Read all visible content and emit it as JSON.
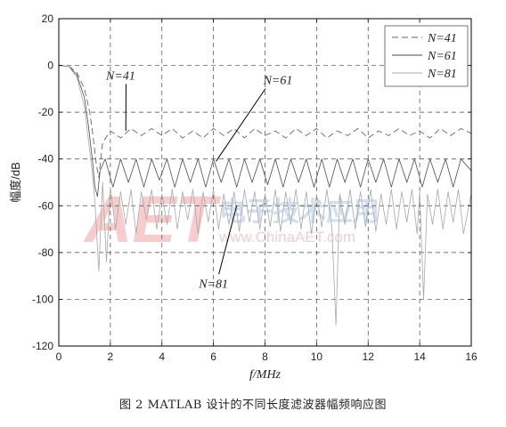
{
  "chart_data": {
    "type": "line",
    "xlabel": "f/MHz",
    "ylabel": "幅度/dB",
    "xlim": [
      0,
      16
    ],
    "ylim": [
      -120,
      20
    ],
    "xticks": [
      0,
      2,
      4,
      6,
      8,
      10,
      12,
      14,
      16
    ],
    "yticks": [
      20,
      0,
      -20,
      -40,
      -60,
      -80,
      -100,
      -120
    ],
    "grid": true,
    "legend_position": "top-right",
    "series": [
      {
        "name": "N=41",
        "style": "dashed",
        "color": "#666666",
        "x": [
          0,
          0.4,
          0.7,
          1.0,
          1.2,
          1.35,
          1.45,
          1.55,
          1.7,
          2.0,
          2.4,
          2.8,
          3.2,
          3.6,
          4.0,
          4.4,
          4.8,
          5.2,
          5.6,
          6.0,
          6.4,
          6.8,
          7.2,
          7.6,
          8.0,
          8.4,
          8.8,
          9.2,
          9.6,
          10.0,
          10.4,
          10.8,
          11.2,
          11.6,
          12.0,
          12.4,
          12.8,
          13.2,
          13.6,
          14.0,
          14.4,
          14.8,
          15.2,
          15.6,
          16.0
        ],
        "y": [
          0,
          -0.5,
          -3,
          -10,
          -20,
          -32,
          -42,
          -48,
          -33,
          -28,
          -31,
          -27,
          -30,
          -27,
          -30,
          -27,
          -31,
          -28,
          -31,
          -27,
          -30,
          -27,
          -31,
          -27,
          -30,
          -28,
          -31,
          -27,
          -30,
          -27,
          -31,
          -28,
          -30,
          -27,
          -31,
          -28,
          -30,
          -27,
          -30,
          -28,
          -31,
          -27,
          -30,
          -27,
          -29
        ]
      },
      {
        "name": "N=61",
        "style": "solid",
        "color": "#4a4a4a",
        "x": [
          0,
          0.4,
          0.7,
          1.0,
          1.15,
          1.3,
          1.4,
          1.5,
          1.6,
          1.8,
          2.1,
          2.4,
          2.7,
          3.0,
          3.3,
          3.6,
          3.9,
          4.2,
          4.5,
          4.8,
          5.1,
          5.4,
          5.7,
          6.0,
          6.3,
          6.6,
          6.9,
          7.2,
          7.5,
          7.8,
          8.1,
          8.4,
          8.7,
          9.0,
          9.3,
          9.6,
          9.9,
          10.2,
          10.5,
          10.8,
          11.1,
          11.4,
          11.7,
          12.0,
          12.3,
          12.6,
          12.9,
          13.2,
          13.5,
          13.8,
          14.1,
          14.4,
          14.7,
          15.0,
          15.3,
          15.6,
          16.0
        ],
        "y": [
          0,
          -0.5,
          -4,
          -14,
          -26,
          -40,
          -52,
          -56,
          -45,
          -40,
          -52,
          -40,
          -50,
          -40,
          -52,
          -40,
          -49,
          -40,
          -52,
          -40,
          -50,
          -40,
          -52,
          -40,
          -50,
          -40,
          -52,
          -40,
          -50,
          -40,
          -51,
          -40,
          -52,
          -40,
          -50,
          -40,
          -52,
          -40,
          -52,
          -40,
          -50,
          -40,
          -52,
          -40,
          -50,
          -40,
          -52,
          -40,
          -50,
          -40,
          -52,
          -40,
          -50,
          -40,
          -52,
          -40,
          -45
        ]
      },
      {
        "name": "N=81",
        "style": "solid",
        "color": "#a8a8a8",
        "x": [
          0,
          0.4,
          0.7,
          1.0,
          1.15,
          1.3,
          1.4,
          1.55,
          1.7,
          1.85,
          2.0,
          2.2,
          2.4,
          2.6,
          2.8,
          3.0,
          3.2,
          3.4,
          3.6,
          3.8,
          4.0,
          4.2,
          4.4,
          4.6,
          4.8,
          5.0,
          5.2,
          5.4,
          5.6,
          5.8,
          6.0,
          6.2,
          6.4,
          6.6,
          6.8,
          7.0,
          7.2,
          7.4,
          7.6,
          7.8,
          8.0,
          8.2,
          8.4,
          8.6,
          8.8,
          9.0,
          9.2,
          9.4,
          9.6,
          9.8,
          10.0,
          10.2,
          10.4,
          10.6,
          10.75,
          10.9,
          11.1,
          11.3,
          11.5,
          11.7,
          11.9,
          12.1,
          12.3,
          12.5,
          12.7,
          12.9,
          13.1,
          13.3,
          13.5,
          13.7,
          13.9,
          14.0,
          14.15,
          14.3,
          14.5,
          14.7,
          14.9,
          15.1,
          15.3,
          15.5,
          15.7,
          16.0
        ],
        "y": [
          0,
          -0.6,
          -5,
          -18,
          -32,
          -46,
          -58,
          -88,
          -50,
          -84,
          -52,
          -70,
          -54,
          -68,
          -53,
          -72,
          -54,
          -66,
          -53,
          -70,
          -55,
          -68,
          -53,
          -70,
          -54,
          -66,
          -53,
          -72,
          -54,
          -67,
          -53,
          -70,
          -55,
          -68,
          -54,
          -71,
          -53,
          -67,
          -54,
          -70,
          -55,
          -69,
          -53,
          -71,
          -54,
          -68,
          -53,
          -70,
          -54,
          -72,
          -55,
          -69,
          -53,
          -70,
          -111,
          -55,
          -68,
          -53,
          -70,
          -54,
          -69,
          -53,
          -71,
          -55,
          -68,
          -53,
          -70,
          -54,
          -67,
          -53,
          -72,
          -54,
          -100,
          -55,
          -68,
          -53,
          -70,
          -54,
          -67,
          -53,
          -72,
          -55
        ]
      }
    ],
    "annotations": [
      {
        "text": "N=41",
        "x": 2.4,
        "y": -6,
        "arrow_to": [
          2.6,
          -28
        ]
      },
      {
        "text": "N=61",
        "x": 8.5,
        "y": -8,
        "arrow_to": [
          6.1,
          -41
        ]
      },
      {
        "text": "N=81",
        "x": 6.0,
        "y": -95,
        "arrow_to": [
          6.9,
          -60
        ]
      }
    ]
  },
  "caption": "图 2  MATLAB 设计的不同长度滤波器幅频响应图",
  "watermark": {
    "logo": "AET",
    "chinese": "电子技术应用",
    "url": "www.ChinaAET.com",
    "color": "#e64a4a"
  }
}
